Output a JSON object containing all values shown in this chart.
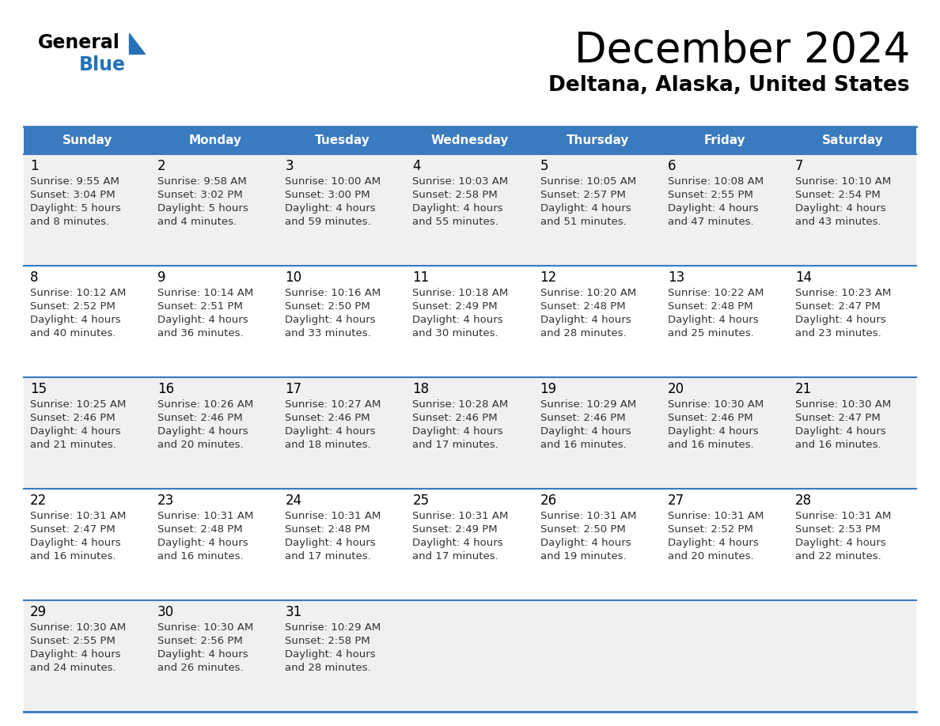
{
  "title": "December 2024",
  "subtitle": "Deltana, Alaska, United States",
  "header_color": "#3a7abf",
  "header_text_color": "#ffffff",
  "cell_bg_even": "#f0f0f0",
  "cell_bg_odd": "#ffffff",
  "border_color": "#3a7abf",
  "text_color": "#333333",
  "day_headers": [
    "Sunday",
    "Monday",
    "Tuesday",
    "Wednesday",
    "Thursday",
    "Friday",
    "Saturday"
  ],
  "weeks": [
    [
      {
        "day": 1,
        "sunrise": "9:55 AM",
        "sunset": "3:04 PM",
        "daylight_line1": "Daylight: 5 hours",
        "daylight_line2": "and 8 minutes."
      },
      {
        "day": 2,
        "sunrise": "9:58 AM",
        "sunset": "3:02 PM",
        "daylight_line1": "Daylight: 5 hours",
        "daylight_line2": "and 4 minutes."
      },
      {
        "day": 3,
        "sunrise": "10:00 AM",
        "sunset": "3:00 PM",
        "daylight_line1": "Daylight: 4 hours",
        "daylight_line2": "and 59 minutes."
      },
      {
        "day": 4,
        "sunrise": "10:03 AM",
        "sunset": "2:58 PM",
        "daylight_line1": "Daylight: 4 hours",
        "daylight_line2": "and 55 minutes."
      },
      {
        "day": 5,
        "sunrise": "10:05 AM",
        "sunset": "2:57 PM",
        "daylight_line1": "Daylight: 4 hours",
        "daylight_line2": "and 51 minutes."
      },
      {
        "day": 6,
        "sunrise": "10:08 AM",
        "sunset": "2:55 PM",
        "daylight_line1": "Daylight: 4 hours",
        "daylight_line2": "and 47 minutes."
      },
      {
        "day": 7,
        "sunrise": "10:10 AM",
        "sunset": "2:54 PM",
        "daylight_line1": "Daylight: 4 hours",
        "daylight_line2": "and 43 minutes."
      }
    ],
    [
      {
        "day": 8,
        "sunrise": "10:12 AM",
        "sunset": "2:52 PM",
        "daylight_line1": "Daylight: 4 hours",
        "daylight_line2": "and 40 minutes."
      },
      {
        "day": 9,
        "sunrise": "10:14 AM",
        "sunset": "2:51 PM",
        "daylight_line1": "Daylight: 4 hours",
        "daylight_line2": "and 36 minutes."
      },
      {
        "day": 10,
        "sunrise": "10:16 AM",
        "sunset": "2:50 PM",
        "daylight_line1": "Daylight: 4 hours",
        "daylight_line2": "and 33 minutes."
      },
      {
        "day": 11,
        "sunrise": "10:18 AM",
        "sunset": "2:49 PM",
        "daylight_line1": "Daylight: 4 hours",
        "daylight_line2": "and 30 minutes."
      },
      {
        "day": 12,
        "sunrise": "10:20 AM",
        "sunset": "2:48 PM",
        "daylight_line1": "Daylight: 4 hours",
        "daylight_line2": "and 28 minutes."
      },
      {
        "day": 13,
        "sunrise": "10:22 AM",
        "sunset": "2:48 PM",
        "daylight_line1": "Daylight: 4 hours",
        "daylight_line2": "and 25 minutes."
      },
      {
        "day": 14,
        "sunrise": "10:23 AM",
        "sunset": "2:47 PM",
        "daylight_line1": "Daylight: 4 hours",
        "daylight_line2": "and 23 minutes."
      }
    ],
    [
      {
        "day": 15,
        "sunrise": "10:25 AM",
        "sunset": "2:46 PM",
        "daylight_line1": "Daylight: 4 hours",
        "daylight_line2": "and 21 minutes."
      },
      {
        "day": 16,
        "sunrise": "10:26 AM",
        "sunset": "2:46 PM",
        "daylight_line1": "Daylight: 4 hours",
        "daylight_line2": "and 20 minutes."
      },
      {
        "day": 17,
        "sunrise": "10:27 AM",
        "sunset": "2:46 PM",
        "daylight_line1": "Daylight: 4 hours",
        "daylight_line2": "and 18 minutes."
      },
      {
        "day": 18,
        "sunrise": "10:28 AM",
        "sunset": "2:46 PM",
        "daylight_line1": "Daylight: 4 hours",
        "daylight_line2": "and 17 minutes."
      },
      {
        "day": 19,
        "sunrise": "10:29 AM",
        "sunset": "2:46 PM",
        "daylight_line1": "Daylight: 4 hours",
        "daylight_line2": "and 16 minutes."
      },
      {
        "day": 20,
        "sunrise": "10:30 AM",
        "sunset": "2:46 PM",
        "daylight_line1": "Daylight: 4 hours",
        "daylight_line2": "and 16 minutes."
      },
      {
        "day": 21,
        "sunrise": "10:30 AM",
        "sunset": "2:47 PM",
        "daylight_line1": "Daylight: 4 hours",
        "daylight_line2": "and 16 minutes."
      }
    ],
    [
      {
        "day": 22,
        "sunrise": "10:31 AM",
        "sunset": "2:47 PM",
        "daylight_line1": "Daylight: 4 hours",
        "daylight_line2": "and 16 minutes."
      },
      {
        "day": 23,
        "sunrise": "10:31 AM",
        "sunset": "2:48 PM",
        "daylight_line1": "Daylight: 4 hours",
        "daylight_line2": "and 16 minutes."
      },
      {
        "day": 24,
        "sunrise": "10:31 AM",
        "sunset": "2:48 PM",
        "daylight_line1": "Daylight: 4 hours",
        "daylight_line2": "and 17 minutes."
      },
      {
        "day": 25,
        "sunrise": "10:31 AM",
        "sunset": "2:49 PM",
        "daylight_line1": "Daylight: 4 hours",
        "daylight_line2": "and 17 minutes."
      },
      {
        "day": 26,
        "sunrise": "10:31 AM",
        "sunset": "2:50 PM",
        "daylight_line1": "Daylight: 4 hours",
        "daylight_line2": "and 19 minutes."
      },
      {
        "day": 27,
        "sunrise": "10:31 AM",
        "sunset": "2:52 PM",
        "daylight_line1": "Daylight: 4 hours",
        "daylight_line2": "and 20 minutes."
      },
      {
        "day": 28,
        "sunrise": "10:31 AM",
        "sunset": "2:53 PM",
        "daylight_line1": "Daylight: 4 hours",
        "daylight_line2": "and 22 minutes."
      }
    ],
    [
      {
        "day": 29,
        "sunrise": "10:30 AM",
        "sunset": "2:55 PM",
        "daylight_line1": "Daylight: 4 hours",
        "daylight_line2": "and 24 minutes."
      },
      {
        "day": 30,
        "sunrise": "10:30 AM",
        "sunset": "2:56 PM",
        "daylight_line1": "Daylight: 4 hours",
        "daylight_line2": "and 26 minutes."
      },
      {
        "day": 31,
        "sunrise": "10:29 AM",
        "sunset": "2:58 PM",
        "daylight_line1": "Daylight: 4 hours",
        "daylight_line2": "and 28 minutes."
      },
      null,
      null,
      null,
      null
    ]
  ]
}
